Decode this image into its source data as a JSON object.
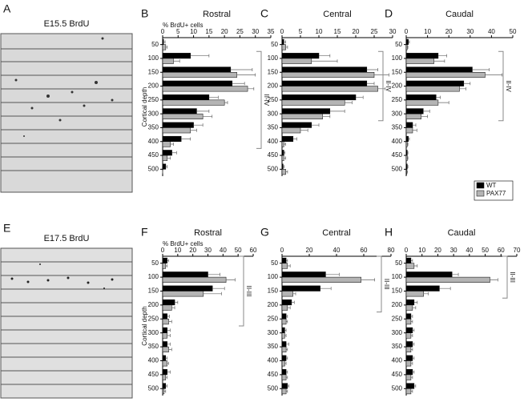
{
  "panels": [
    {
      "letter": "A",
      "label": "E15.5 BrdU"
    },
    {
      "letter": "E",
      "label": "E17.5 BrdU"
    }
  ],
  "chart_data": [
    {
      "type": "hbar",
      "letter": "B",
      "title": "Rostral",
      "x_label": "% BrdU+ cells",
      "y_label": "Cortical depth",
      "categories": [
        50,
        100,
        150,
        200,
        250,
        300,
        350,
        400,
        450,
        500
      ],
      "xlim": [
        0,
        35
      ],
      "xticks": [
        0,
        5,
        10,
        15,
        20,
        25,
        30,
        35
      ],
      "series": [
        {
          "name": "WT",
          "color": "#000000",
          "values": [
            0.3,
            9,
            22,
            22.5,
            15,
            11,
            10,
            6,
            3,
            1
          ],
          "errors": [
            0.5,
            6,
            7,
            4,
            3,
            4,
            3,
            3,
            1.5,
            0.5
          ]
        },
        {
          "name": "PAX77",
          "color": "#b4b4b4",
          "values": [
            1,
            3.5,
            24,
            27.5,
            20,
            13,
            9,
            2.5,
            1.5,
            0
          ],
          "errors": [
            0.5,
            2,
            6,
            2,
            1,
            3,
            2,
            1,
            1,
            0
          ]
        }
      ],
      "annotation": {
        "text": "II-IV",
        "span": [
          100,
          400
        ]
      }
    },
    {
      "type": "hbar",
      "letter": "C",
      "title": "Central",
      "categories": [
        50,
        100,
        150,
        200,
        250,
        300,
        350,
        400,
        450,
        500
      ],
      "xlim": [
        0,
        30
      ],
      "xticks": [
        0,
        5,
        10,
        15,
        20,
        25,
        30
      ],
      "series": [
        {
          "name": "WT",
          "color": "#000000",
          "values": [
            0.5,
            10,
            23,
            23,
            20,
            13,
            8,
            3,
            0.5,
            0.3
          ],
          "errors": [
            0.5,
            3,
            3,
            2,
            2,
            4,
            2,
            1,
            0.3,
            0.3
          ]
        },
        {
          "name": "PAX77",
          "color": "#b4b4b4",
          "values": [
            1,
            8,
            25,
            26,
            17,
            11,
            5,
            0.5,
            0.5,
            1
          ],
          "errors": [
            0.5,
            7,
            4,
            2,
            2,
            2,
            2,
            0.5,
            0.5,
            0.5
          ]
        }
      ],
      "annotation": {
        "text": "II-IV",
        "span": [
          100,
          300
        ]
      }
    },
    {
      "type": "hbar",
      "letter": "D",
      "title": "Caudal",
      "categories": [
        50,
        100,
        150,
        200,
        250,
        300,
        350,
        400,
        450,
        500
      ],
      "xlim": [
        0,
        50
      ],
      "xticks": [
        0,
        10,
        20,
        30,
        40,
        50
      ],
      "legend": "lower right",
      "series": [
        {
          "name": "WT",
          "color": "#000000",
          "values": [
            1,
            15,
            31,
            27,
            14,
            8,
            3,
            1,
            0.5,
            0.5
          ],
          "errors": [
            0.5,
            4,
            8,
            3,
            2,
            3,
            1.5,
            0.5,
            0.3,
            0.3
          ]
        },
        {
          "name": "PAX77",
          "color": "#b4b4b4",
          "values": [
            0.5,
            13,
            37,
            25,
            15,
            7,
            3,
            0.5,
            0.5,
            0.3
          ],
          "errors": [
            0.3,
            5,
            8,
            3,
            5,
            3,
            2,
            0.3,
            0.3,
            0.3
          ]
        }
      ],
      "annotation": {
        "text": "II-IV",
        "span": [
          100,
          300
        ]
      }
    },
    {
      "type": "hbar",
      "letter": "F",
      "title": "Rostral",
      "x_label": "% BrdU+ cells",
      "y_label": "Cortical depth",
      "categories": [
        50,
        100,
        150,
        200,
        250,
        300,
        350,
        400,
        450,
        500
      ],
      "xlim": [
        0,
        60
      ],
      "xticks": [
        0,
        10,
        20,
        30,
        40,
        50,
        60
      ],
      "series": [
        {
          "name": "WT",
          "color": "#000000",
          "values": [
            3,
            30,
            33,
            8,
            3,
            3,
            3,
            2,
            3,
            2
          ],
          "errors": [
            1,
            8,
            8,
            2,
            1.5,
            2,
            2,
            1,
            2,
            1
          ]
        },
        {
          "name": "PAX77",
          "color": "#b4b4b4",
          "values": [
            2,
            42,
            27,
            6,
            4,
            3,
            4,
            3,
            2,
            1
          ],
          "errors": [
            1,
            6,
            12,
            2,
            2,
            2,
            2,
            1,
            1,
            1
          ]
        }
      ],
      "annotation": {
        "text": "II-III",
        "span": [
          50,
          250
        ]
      }
    },
    {
      "type": "hbar",
      "letter": "G",
      "title": "Central",
      "categories": [
        50,
        100,
        150,
        200,
        250,
        300,
        350,
        400,
        450,
        500
      ],
      "xlim": [
        0,
        80
      ],
      "xticks": [
        0,
        20,
        40,
        60,
        80
      ],
      "series": [
        {
          "name": "WT",
          "color": "#000000",
          "values": [
            3,
            32,
            28,
            7,
            3,
            2,
            3,
            3,
            3,
            4
          ],
          "errors": [
            1,
            10,
            8,
            2,
            1,
            1,
            2,
            1,
            1,
            1
          ]
        },
        {
          "name": "PAX77",
          "color": "#b4b4b4",
          "values": [
            4,
            58,
            8,
            4,
            3,
            2,
            3,
            2,
            3,
            3
          ],
          "errors": [
            2,
            10,
            2,
            2,
            1,
            1,
            1,
            1,
            1,
            1
          ]
        }
      ],
      "annotation": {
        "text": "II-III",
        "span": [
          50,
          200
        ]
      }
    },
    {
      "type": "hbar",
      "letter": "H",
      "title": "Caudal",
      "categories": [
        50,
        100,
        150,
        200,
        250,
        300,
        350,
        400,
        450,
        500
      ],
      "xlim": [
        0,
        70
      ],
      "xticks": [
        0,
        10,
        20,
        30,
        40,
        50,
        60,
        70
      ],
      "series": [
        {
          "name": "WT",
          "color": "#000000",
          "values": [
            3,
            29,
            21,
            5,
            3,
            4,
            4,
            4,
            4,
            5
          ],
          "errors": [
            1,
            4,
            7,
            2,
            1,
            1,
            1,
            1,
            1,
            1
          ]
        },
        {
          "name": "PAX77",
          "color": "#b4b4b4",
          "values": [
            5,
            53,
            11,
            4,
            3,
            3,
            3,
            3,
            3,
            3
          ],
          "errors": [
            2,
            5,
            3,
            2,
            1,
            1,
            1,
            1,
            1,
            1
          ]
        }
      ],
      "annotation": {
        "text": "II-III",
        "span": [
          50,
          150
        ]
      }
    }
  ]
}
